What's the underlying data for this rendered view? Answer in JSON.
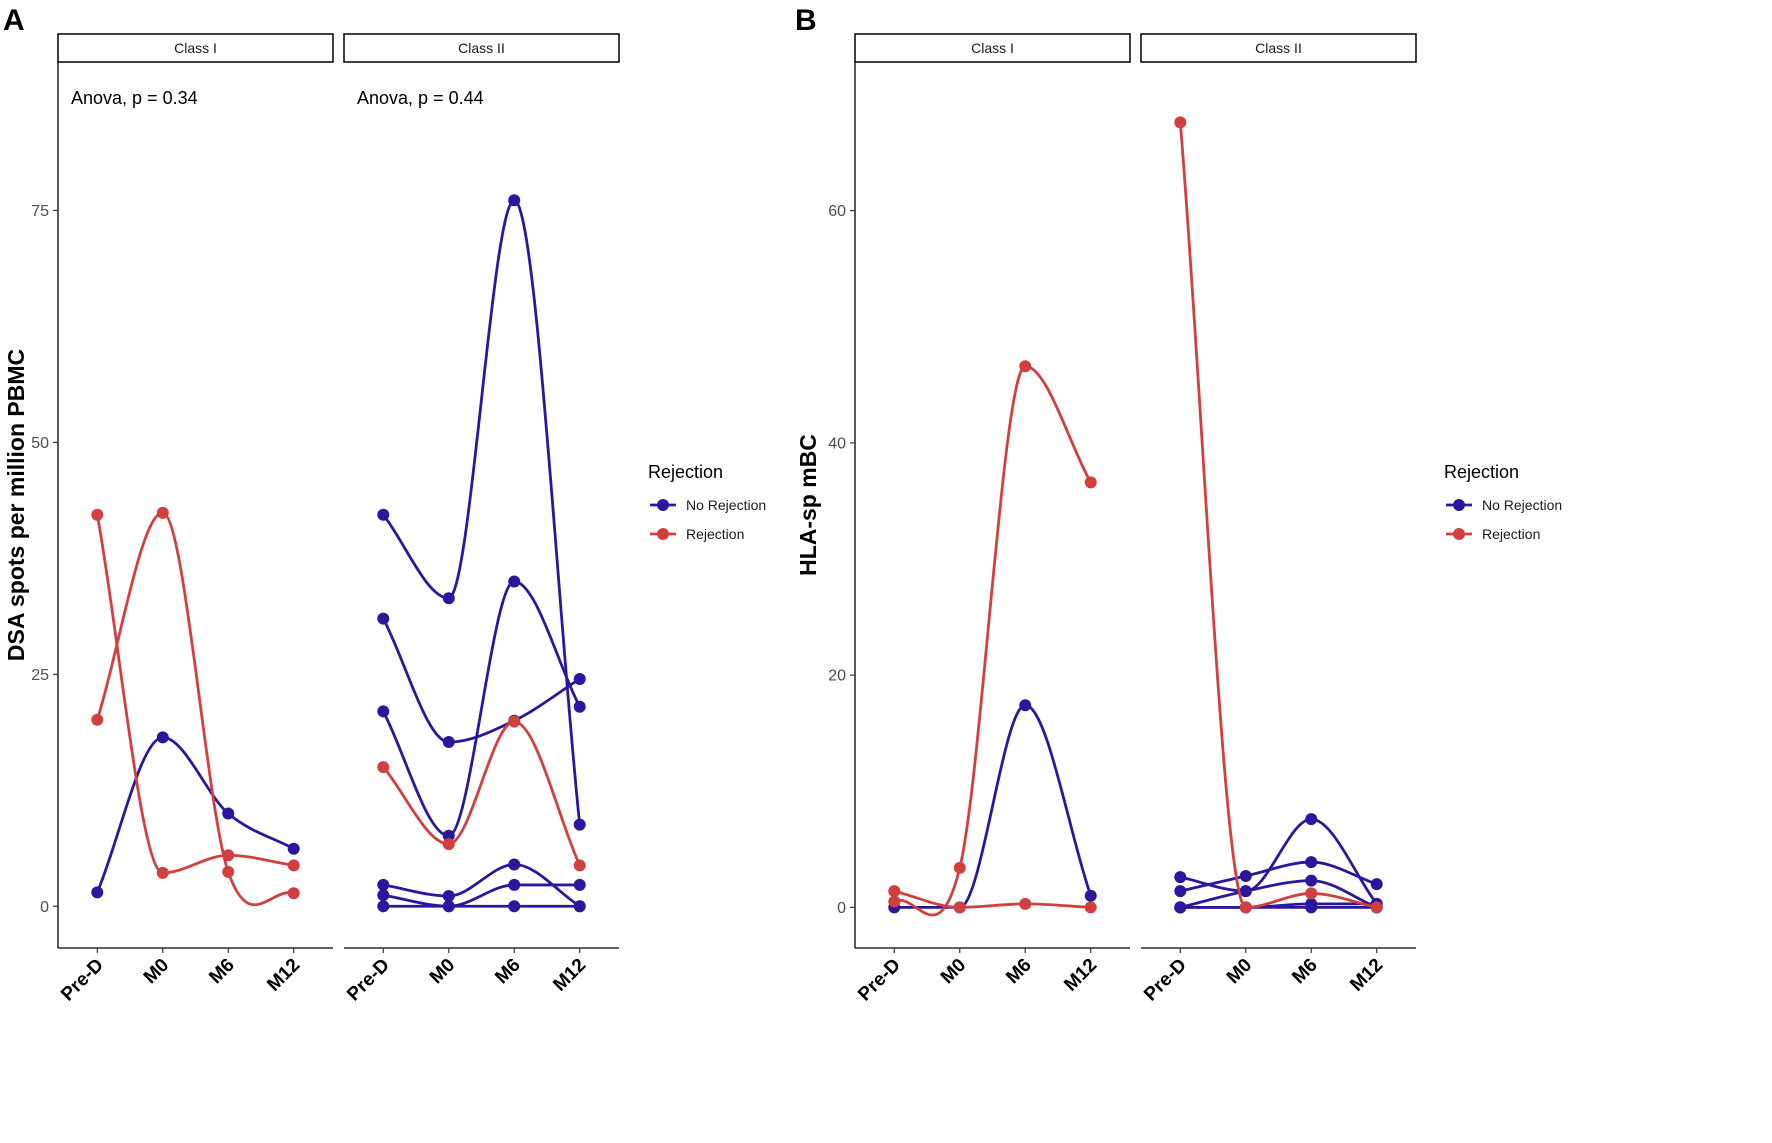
{
  "panels": [
    {
      "letter": "A",
      "ylabel": "DSA spots per million PBMC",
      "ylim": [
        -4.5,
        91
      ],
      "yticks": [
        0,
        25,
        50,
        75
      ],
      "legend": {
        "title": "Rejection",
        "items": [
          "No Rejection",
          "Rejection"
        ]
      },
      "facets": [
        {
          "title": "Class I",
          "annotation": "Anova, p = 0.34",
          "categories": [
            "Pre-D",
            "M0",
            "M6",
            "M12"
          ],
          "series": [
            {
              "group": "No Rejection",
              "values": [
                1.5,
                18.2,
                10,
                6.2
              ]
            },
            {
              "group": "Rejection",
              "values": [
                42.2,
                3.6,
                5.5,
                4.4
              ]
            },
            {
              "group": "Rejection",
              "values": [
                20.1,
                42.4,
                3.7,
                1.4
              ]
            }
          ]
        },
        {
          "title": "Class II",
          "annotation": "Anova, p = 0.44",
          "categories": [
            "Pre-D",
            "M0",
            "M6",
            "M12"
          ],
          "series": [
            {
              "group": "No Rejection",
              "values": [
                42.2,
                33.2,
                76.1,
                8.8
              ]
            },
            {
              "group": "No Rejection",
              "values": [
                31.0,
                17.7,
                20.0,
                24.5
              ]
            },
            {
              "group": "No Rejection",
              "values": [
                21.0,
                7.6,
                35.0,
                21.5
              ]
            },
            {
              "group": "No Rejection",
              "values": [
                2.3,
                1.1,
                4.5,
                0
              ]
            },
            {
              "group": "No Rejection",
              "values": [
                1.2,
                0,
                2.3,
                2.3
              ]
            },
            {
              "group": "No Rejection",
              "values": [
                0,
                0,
                0,
                0
              ]
            },
            {
              "group": "Rejection",
              "values": [
                15.0,
                6.7,
                19.9,
                4.4
              ]
            }
          ]
        }
      ]
    },
    {
      "letter": "B",
      "ylabel": "HLA-sp mBC",
      "ylim": [
        -3.5,
        72.8
      ],
      "yticks": [
        0,
        20,
        40,
        60
      ],
      "legend": {
        "title": "Rejection",
        "items": [
          "No Rejection",
          "Rejection"
        ]
      },
      "facets": [
        {
          "title": "Class I",
          "annotation": "",
          "categories": [
            "Pre-D",
            "M0",
            "M6",
            "M12"
          ],
          "series": [
            {
              "group": "No Rejection",
              "values": [
                0,
                0,
                17.4,
                1
              ]
            },
            {
              "group": "Rejection",
              "values": [
                0.5,
                3.4,
                46.6,
                36.6
              ]
            },
            {
              "group": "Rejection",
              "values": [
                1.4,
                0,
                0.3,
                0
              ]
            }
          ]
        },
        {
          "title": "Class II",
          "annotation": "",
          "categories": [
            "Pre-D",
            "M0",
            "M6",
            "M12"
          ],
          "series": [
            {
              "group": "No Rejection",
              "values": [
                2.6,
                1.4,
                7.6,
                0.3
              ]
            },
            {
              "group": "No Rejection",
              "values": [
                1.4,
                2.7,
                3.9,
                2
              ]
            },
            {
              "group": "No Rejection",
              "values": [
                0,
                1.4,
                2.3,
                0
              ]
            },
            {
              "group": "No Rejection",
              "values": [
                0,
                0,
                0.3,
                0.3
              ]
            },
            {
              "group": "No Rejection",
              "values": [
                0,
                0,
                0,
                0
              ]
            },
            {
              "group": "Rejection",
              "values": [
                67.6,
                0,
                1.2,
                0
              ]
            }
          ]
        }
      ]
    }
  ],
  "colors": {
    "No Rejection": "#2b179e",
    "Rejection": "#d1403e"
  }
}
